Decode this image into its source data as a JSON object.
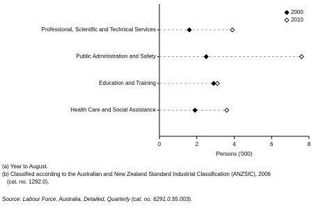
{
  "chart_data": {
    "type": "dot",
    "categories": [
      "Professional, Scientific and Technical Services",
      "Public Administration and Safety",
      "Education and Training",
      "Health Care and Social Assistance"
    ],
    "series": [
      {
        "name": "2000",
        "color": "#000000",
        "fill": "#000000",
        "values": [
          1.6,
          2.5,
          2.9,
          1.9
        ]
      },
      {
        "name": "2010",
        "color": "#000000",
        "fill": "#ffffff",
        "values": [
          3.9,
          7.6,
          3.1,
          3.6
        ]
      }
    ],
    "xlim": [
      0,
      8
    ],
    "xticks": [
      0,
      2,
      4,
      6,
      8
    ],
    "xlabel": "Persons ('000)",
    "legend": "top-right",
    "notes": [
      "(a) Year to August.",
      "(b) Classified according to the Australian and New Zealand Standard Industrial Classification (ANZSIC), 2006",
      "(cat. no. 1292.0)."
    ],
    "source": "Source: Labour Force, Australia, Detailed, Quarterly (cat. no. 6291.0.55.003)."
  }
}
